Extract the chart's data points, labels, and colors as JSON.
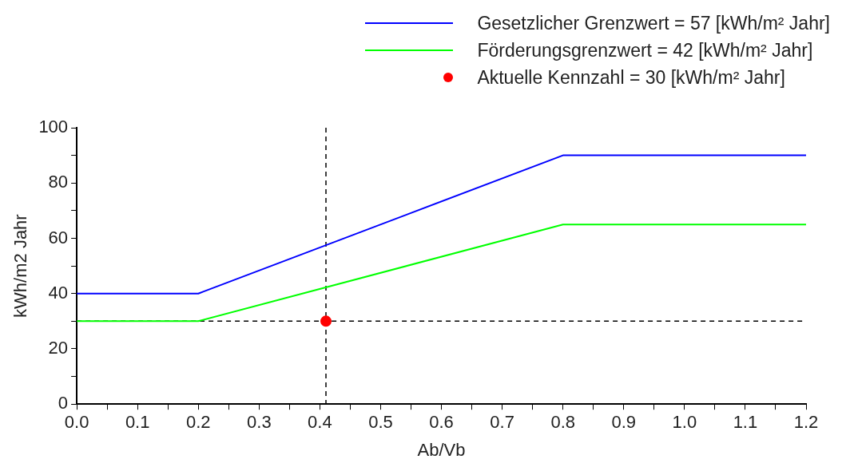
{
  "chart_data": {
    "type": "line",
    "xlabel": "Ab/Vb",
    "ylabel": "kWh/m2 Jahr",
    "xlim": [
      0,
      1.2
    ],
    "ylim": [
      0,
      100
    ],
    "xticks": [
      {
        "value": 0,
        "label": "0.0"
      },
      {
        "value": 0.05,
        "label": null
      },
      0.1,
      {
        "value": 0.15,
        "label": null
      },
      0.2,
      {
        "value": 0.25,
        "label": null
      },
      0.3,
      {
        "value": 0.35,
        "label": null
      },
      0.4,
      {
        "value": 0.45,
        "label": null
      },
      0.5,
      {
        "value": 0.55,
        "label": null
      },
      0.6,
      {
        "value": 0.65,
        "label": null
      },
      0.7,
      {
        "value": 0.75,
        "label": null
      },
      0.8,
      {
        "value": 0.85,
        "label": null
      },
      0.9,
      {
        "value": 0.95,
        "label": null
      },
      {
        "value": 1,
        "label": "1.0"
      },
      {
        "value": 1.05,
        "label": null
      },
      1.1,
      {
        "value": 1.15,
        "label": null
      },
      1.2
    ],
    "yticks": [
      0,
      {
        "value": 10,
        "label": null
      },
      20,
      {
        "value": 30,
        "label": null
      },
      40,
      {
        "value": 50,
        "label": null
      },
      60,
      {
        "value": 70,
        "label": null
      },
      80,
      {
        "value": 90,
        "label": null
      },
      100
    ],
    "grid": false,
    "legend": "top right",
    "series": [
      {
        "name": "Gesetzlicher Grenzwert = 57 [kWh/m² Jahr]",
        "color": "#0000ff",
        "marker": "none",
        "x": [
          0,
          0.2,
          0.8,
          1.2
        ],
        "values": [
          40,
          40,
          90,
          90
        ]
      },
      {
        "name": "Förderungsgrenzwert = 42 [kWh/m² Jahr]",
        "color": "#00ff00",
        "marker": "none",
        "x": [
          0,
          0.2,
          0.8,
          1.2
        ],
        "values": [
          30,
          30,
          65,
          65
        ]
      },
      {
        "name": "Aktuelle Kennzahl = 30 [kWh/m² Jahr]",
        "type": "scatter",
        "color": "#ff0000",
        "marker": "circle",
        "x": [
          0.41
        ],
        "values": [
          30
        ]
      }
    ],
    "ref_lines": [
      {
        "axis": "x",
        "value": 0.41,
        "color": "#000000",
        "line_style": "dashed"
      },
      {
        "axis": "y",
        "value": 30,
        "color": "#000000",
        "line_style": "dashed"
      }
    ]
  }
}
